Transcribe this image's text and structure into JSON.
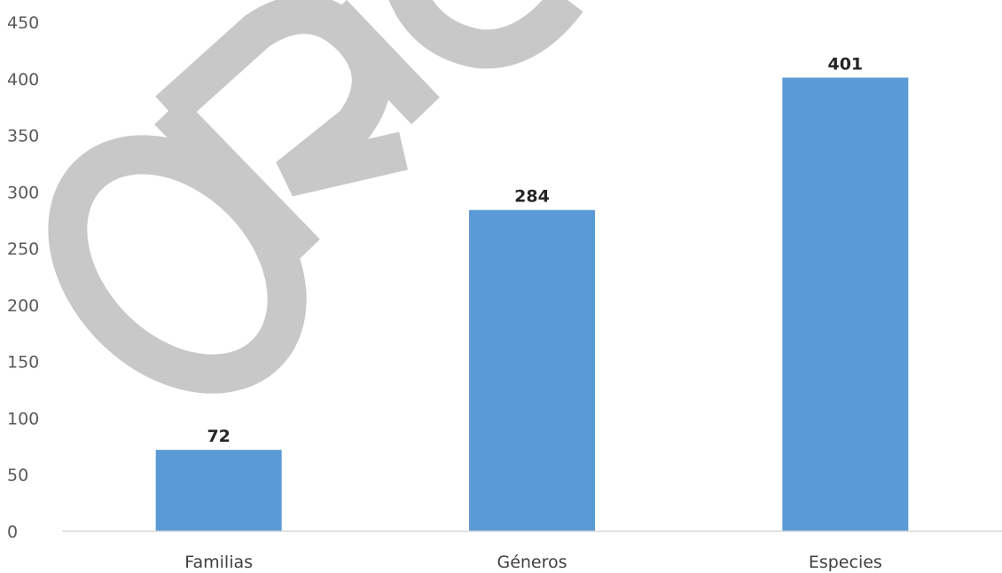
{
  "chart_data": {
    "type": "bar",
    "categories": [
      "Familias",
      "Géneros",
      "Especies"
    ],
    "values": [
      72,
      284,
      401
    ],
    "data_labels": [
      "72",
      "284",
      "401"
    ],
    "title": "",
    "xlabel": "",
    "ylabel": "",
    "ylim": [
      0,
      450
    ],
    "yticks": [
      0,
      50,
      100,
      150,
      200,
      250,
      300,
      350,
      400,
      450
    ],
    "ytick_labels": [
      "0",
      "50",
      "100",
      "150",
      "200",
      "250",
      "300",
      "350",
      "400",
      "450"
    ],
    "grid": false,
    "legend": "none",
    "bar_color": "#5b9bd5",
    "axis_color": "#d9d9d9"
  },
  "watermark": {
    "text": "ORIGINAL",
    "color": "#c8c8c8"
  }
}
